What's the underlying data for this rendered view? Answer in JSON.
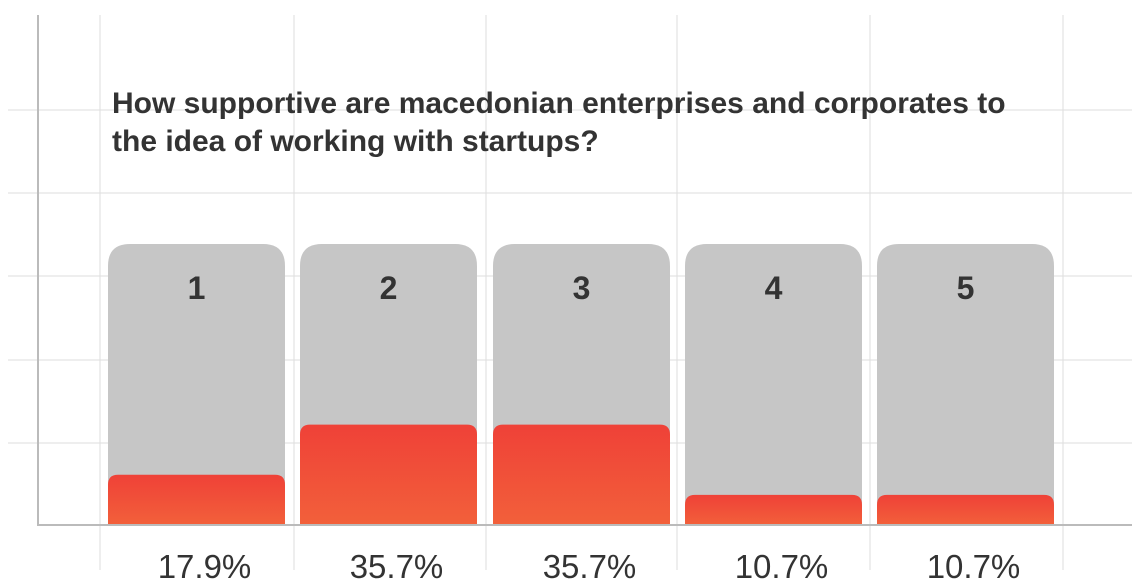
{
  "chart_data": {
    "type": "bar",
    "title": "How supportive are macedonian enterprises and corporates to the idea of working with startups?",
    "title_lines": [
      "How supportive are macedonian enterprises and corporates to",
      "the idea of working with startups?"
    ],
    "categories": [
      "1",
      "2",
      "3",
      "4",
      "5"
    ],
    "values": [
      17.9,
      35.7,
      35.7,
      10.7,
      10.7
    ],
    "value_labels": [
      "17.9%",
      "35.7%",
      "35.7%",
      "10.7%",
      "10.7%"
    ],
    "ylim": [
      0,
      100
    ],
    "grid": true,
    "legend": "none",
    "colors": {
      "track": "#c6c6c6",
      "fill_top": "#ef4138",
      "fill_bottom": "#f2603a",
      "grid": "#dddddd",
      "axis": "#bbbbbb",
      "text": "#333333"
    }
  }
}
